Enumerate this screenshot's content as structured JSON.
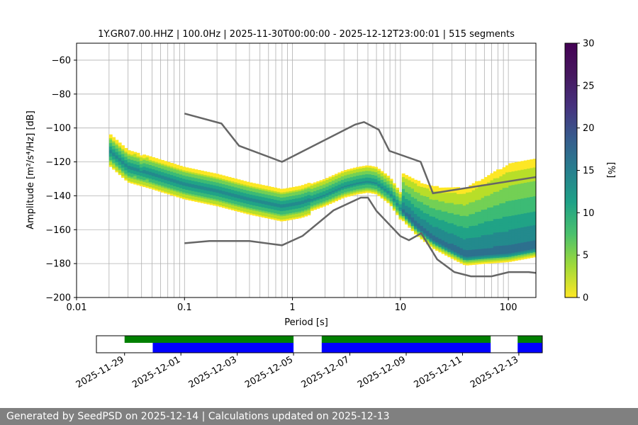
{
  "footer": {
    "text": "Generated by SeedPSD on 2025-12-14 | Calculations updated on 2025-12-13"
  },
  "colorbar": {
    "label": "[%]",
    "min": 0,
    "max": 30,
    "ticks": [
      "0",
      "5",
      "10",
      "15",
      "20",
      "25",
      "30"
    ]
  },
  "chart_data": [
    {
      "type": "heatmap",
      "title": "1Y.GR07.00.HHZ | 100.0Hz | 2025-11-30T00:00:00 - 2025-12-12T23:00:01 | 515 segments",
      "xlabel": "Period [s]",
      "ylabel": "Amplitude [m²/s⁴/Hz] [dB]",
      "x_scale": "log",
      "xlim": [
        0.01,
        180
      ],
      "ylim": [
        -200,
        -50
      ],
      "x_ticks": [
        "0.01",
        "0.1",
        "1",
        "10",
        "100"
      ],
      "y_ticks": [
        "−200",
        "−180",
        "−160",
        "−140",
        "−120",
        "−100",
        "−80",
        "−60"
      ],
      "grid": true,
      "colormap": "viridis_r",
      "color_range_percent": [
        0,
        30
      ],
      "mode_curve": {
        "period": [
          0.02,
          0.03,
          0.05,
          0.1,
          0.2,
          0.4,
          0.8,
          1.2,
          2,
          3,
          4,
          5,
          6,
          8,
          10,
          14,
          20,
          30,
          40,
          60,
          100,
          180
        ],
        "db": [
          -114,
          -124,
          -128,
          -134,
          -138,
          -143,
          -147,
          -145,
          -140,
          -135,
          -133,
          -132,
          -133,
          -139,
          -148,
          -158,
          -166,
          -172,
          -176,
          -175,
          -174,
          -171
        ]
      },
      "overlay_curves": [
        {
          "name": "NHNM",
          "period": [
            0.1,
            0.22,
            0.32,
            0.8,
            3.8,
            4.6,
            6.3,
            7.9,
            15.4,
            20,
            354.8
          ],
          "db": [
            -91.5,
            -97.4,
            -110.5,
            -120,
            -98,
            -96.5,
            -101,
            -113.5,
            -120,
            -138.5,
            -126
          ]
        },
        {
          "name": "NLNM",
          "period": [
            0.1,
            0.17,
            0.4,
            0.8,
            1.24,
            2.4,
            4.3,
            5,
            6,
            10,
            12,
            15.6,
            21.9,
            31.6,
            45,
            70,
            101,
            154,
            180
          ],
          "db": [
            -168,
            -166.7,
            -166.7,
            -169.2,
            -163.7,
            -148.6,
            -141.1,
            -141.1,
            -149,
            -163.8,
            -166.2,
            -162.1,
            -177.5,
            -185,
            -187.5,
            -187.5,
            -185,
            -185,
            -185.5
          ]
        }
      ]
    },
    {
      "type": "timeline",
      "x_ticks": [
        "2025-11-29",
        "2025-12-01",
        "2025-12-03",
        "2025-12-05",
        "2025-12-07",
        "2025-12-09",
        "2025-12-11",
        "2025-12-13"
      ],
      "xlim": [
        "2025-11-28T00:00",
        "2025-12-13T20:00"
      ],
      "bars": [
        {
          "color": "#008000",
          "segments": [
            [
              "2025-11-29T00:00",
              "2025-12-05T00:00"
            ],
            [
              "2025-12-06T00:00",
              "2025-12-12T00:00"
            ],
            [
              "2025-12-12T23:00",
              "2025-12-13T23:00"
            ]
          ]
        },
        {
          "color": "#0000ff",
          "segments": [
            [
              "2025-11-30T00:00",
              "2025-12-05T00:00"
            ],
            [
              "2025-12-06T00:00",
              "2025-12-12T00:00"
            ],
            [
              "2025-12-12T23:00",
              "2025-12-13T23:00"
            ]
          ]
        }
      ]
    }
  ]
}
